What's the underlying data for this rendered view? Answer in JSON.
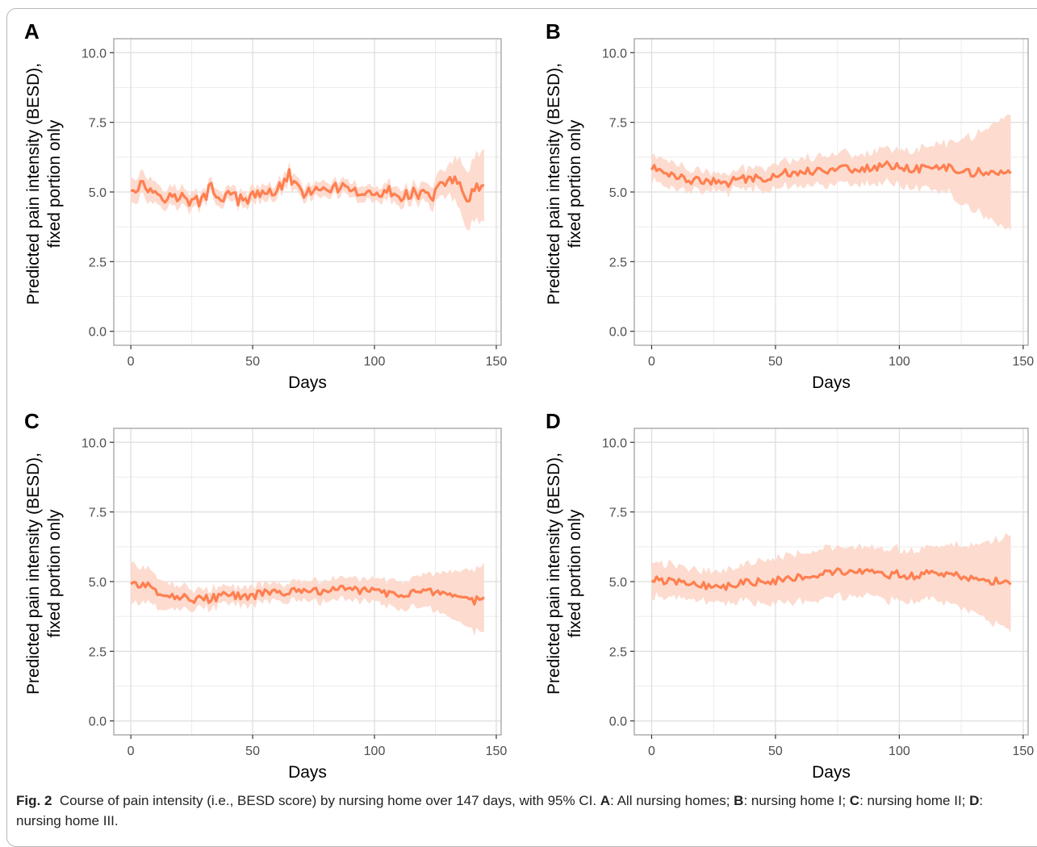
{
  "caption": {
    "label": "Fig. 2",
    "text_a": "Course of pain intensity (i.e., BESD score) by nursing home over 147 days, with 95% CI. ",
    "k1": "A",
    "t1": ": All nursing homes; ",
    "k2": "B",
    "t2": ": nursing home I; ",
    "k3": "C",
    "t3": ": nursing home II; ",
    "k4": "D",
    "t4": ": nursing home III."
  },
  "colors": {
    "line": "#FF7F50",
    "ribbon": "#FDD9CC",
    "grid": "#dedede",
    "panel_border": "#9a9a9a"
  },
  "chart_data": [
    {
      "panel": "A",
      "type": "line",
      "xlabel": "Days",
      "ylabel": "Predicted pain intensity (BESD),",
      "ylabel2": "fixed portion only",
      "xlim": [
        -7,
        152
      ],
      "ylim": [
        -0.5,
        10.5
      ],
      "xticks": [
        0,
        50,
        100,
        150
      ],
      "yticks": [
        0.0,
        2.5,
        5.0,
        7.5,
        10.0
      ],
      "ytick_labels": [
        "0.0",
        "2.5",
        "5.0",
        "7.5",
        "10.0"
      ],
      "x_start": 0,
      "x_end": 145,
      "mean": {
        "anchors": [
          [
            0,
            5.15
          ],
          [
            5,
            5.25
          ],
          [
            10,
            5.0
          ],
          [
            15,
            4.8
          ],
          [
            20,
            4.85
          ],
          [
            25,
            4.6
          ],
          [
            30,
            4.75
          ],
          [
            33,
            5.2
          ],
          [
            36,
            4.8
          ],
          [
            40,
            4.9
          ],
          [
            45,
            4.7
          ],
          [
            50,
            4.8
          ],
          [
            55,
            5.0
          ],
          [
            60,
            5.05
          ],
          [
            65,
            5.6
          ],
          [
            70,
            4.9
          ],
          [
            75,
            5.15
          ],
          [
            80,
            4.9
          ],
          [
            85,
            5.2
          ],
          [
            90,
            4.95
          ],
          [
            95,
            5.0
          ],
          [
            100,
            4.8
          ],
          [
            105,
            5.05
          ],
          [
            110,
            4.85
          ],
          [
            115,
            5.0
          ],
          [
            120,
            4.9
          ],
          [
            125,
            4.9
          ],
          [
            130,
            5.5
          ],
          [
            134,
            5.4
          ],
          [
            138,
            4.7
          ],
          [
            142,
            5.1
          ],
          [
            145,
            5.1
          ]
        ],
        "amp": 0.22
      },
      "ribbon_half": {
        "anchors": [
          [
            0,
            0.45
          ],
          [
            30,
            0.25
          ],
          [
            60,
            0.25
          ],
          [
            100,
            0.25
          ],
          [
            120,
            0.3
          ],
          [
            130,
            0.5
          ],
          [
            135,
            0.9
          ],
          [
            140,
            1.1
          ],
          [
            145,
            1.3
          ]
        ],
        "amp": 0.08
      }
    },
    {
      "panel": "B",
      "type": "line",
      "xlabel": "Days",
      "ylabel": "Predicted pain intensity (BESD),",
      "ylabel2": "fixed portion only",
      "xlim": [
        -7,
        152
      ],
      "ylim": [
        -0.5,
        10.5
      ],
      "xticks": [
        0,
        50,
        100,
        150
      ],
      "yticks": [
        0.0,
        2.5,
        5.0,
        7.5,
        10.0
      ],
      "ytick_labels": [
        "0.0",
        "2.5",
        "5.0",
        "7.5",
        "10.0"
      ],
      "x_start": 0,
      "x_end": 145,
      "mean": {
        "anchors": [
          [
            0,
            5.85
          ],
          [
            5,
            5.75
          ],
          [
            10,
            5.6
          ],
          [
            15,
            5.45
          ],
          [
            20,
            5.4
          ],
          [
            25,
            5.35
          ],
          [
            30,
            5.3
          ],
          [
            35,
            5.45
          ],
          [
            40,
            5.5
          ],
          [
            45,
            5.5
          ],
          [
            50,
            5.6
          ],
          [
            55,
            5.7
          ],
          [
            60,
            5.75
          ],
          [
            65,
            5.75
          ],
          [
            70,
            5.8
          ],
          [
            75,
            5.85
          ],
          [
            80,
            5.85
          ],
          [
            85,
            5.8
          ],
          [
            90,
            5.9
          ],
          [
            95,
            5.95
          ],
          [
            100,
            5.95
          ],
          [
            105,
            5.8
          ],
          [
            110,
            5.85
          ],
          [
            115,
            5.85
          ],
          [
            120,
            5.9
          ],
          [
            125,
            5.75
          ],
          [
            130,
            5.7
          ],
          [
            135,
            5.75
          ],
          [
            140,
            5.65
          ],
          [
            145,
            5.75
          ]
        ],
        "amp": 0.15
      },
      "ribbon_half": {
        "anchors": [
          [
            0,
            0.45
          ],
          [
            20,
            0.3
          ],
          [
            35,
            0.3
          ],
          [
            50,
            0.4
          ],
          [
            70,
            0.5
          ],
          [
            90,
            0.55
          ],
          [
            110,
            0.7
          ],
          [
            120,
            0.9
          ],
          [
            130,
            1.3
          ],
          [
            140,
            1.8
          ],
          [
            145,
            2.1
          ]
        ],
        "amp": 0.15
      }
    },
    {
      "panel": "C",
      "type": "line",
      "xlabel": "Days",
      "ylabel": "Predicted pain intensity (BESD),",
      "ylabel2": "fixed portion only",
      "xlim": [
        -7,
        152
      ],
      "ylim": [
        -0.5,
        10.5
      ],
      "xticks": [
        0,
        50,
        100,
        150
      ],
      "yticks": [
        0.0,
        2.5,
        5.0,
        7.5,
        10.0
      ],
      "ytick_labels": [
        "0.0",
        "2.5",
        "5.0",
        "7.5",
        "10.0"
      ],
      "x_start": 0,
      "x_end": 145,
      "mean": {
        "anchors": [
          [
            0,
            4.95
          ],
          [
            5,
            4.9
          ],
          [
            10,
            4.7
          ],
          [
            15,
            4.55
          ],
          [
            20,
            4.45
          ],
          [
            25,
            4.4
          ],
          [
            30,
            4.35
          ],
          [
            35,
            4.45
          ],
          [
            40,
            4.5
          ],
          [
            45,
            4.45
          ],
          [
            50,
            4.5
          ],
          [
            55,
            4.6
          ],
          [
            60,
            4.6
          ],
          [
            65,
            4.65
          ],
          [
            70,
            4.6
          ],
          [
            75,
            4.7
          ],
          [
            80,
            4.65
          ],
          [
            85,
            4.7
          ],
          [
            90,
            4.75
          ],
          [
            95,
            4.7
          ],
          [
            100,
            4.65
          ],
          [
            105,
            4.6
          ],
          [
            110,
            4.55
          ],
          [
            115,
            4.6
          ],
          [
            120,
            4.65
          ],
          [
            125,
            4.55
          ],
          [
            130,
            4.45
          ],
          [
            135,
            4.35
          ],
          [
            140,
            4.3
          ],
          [
            145,
            4.4
          ]
        ],
        "amp": 0.15
      },
      "ribbon_half": {
        "anchors": [
          [
            0,
            0.7
          ],
          [
            10,
            0.5
          ],
          [
            25,
            0.35
          ],
          [
            40,
            0.3
          ],
          [
            60,
            0.3
          ],
          [
            80,
            0.35
          ],
          [
            100,
            0.4
          ],
          [
            115,
            0.5
          ],
          [
            125,
            0.65
          ],
          [
            135,
            0.9
          ],
          [
            145,
            1.2
          ]
        ],
        "amp": 0.1
      }
    },
    {
      "panel": "D",
      "type": "line",
      "xlabel": "Days",
      "ylabel": "Predicted pain intensity (BESD),",
      "ylabel2": "fixed portion only",
      "xlim": [
        -7,
        152
      ],
      "ylim": [
        -0.5,
        10.5
      ],
      "xticks": [
        0,
        50,
        100,
        150
      ],
      "yticks": [
        0.0,
        2.5,
        5.0,
        7.5,
        10.0
      ],
      "ytick_labels": [
        "0.0",
        "2.5",
        "5.0",
        "7.5",
        "10.0"
      ],
      "x_start": 0,
      "x_end": 145,
      "mean": {
        "anchors": [
          [
            0,
            5.05
          ],
          [
            10,
            5.0
          ],
          [
            20,
            4.9
          ],
          [
            30,
            4.8
          ],
          [
            40,
            5.0
          ],
          [
            50,
            5.05
          ],
          [
            55,
            5.15
          ],
          [
            60,
            5.2
          ],
          [
            65,
            5.25
          ],
          [
            70,
            5.3
          ],
          [
            75,
            5.35
          ],
          [
            80,
            5.3
          ],
          [
            85,
            5.35
          ],
          [
            90,
            5.3
          ],
          [
            95,
            5.25
          ],
          [
            100,
            5.25
          ],
          [
            105,
            5.2
          ],
          [
            110,
            5.25
          ],
          [
            115,
            5.3
          ],
          [
            120,
            5.25
          ],
          [
            125,
            5.2
          ],
          [
            130,
            5.1
          ],
          [
            135,
            5.05
          ],
          [
            140,
            5.0
          ],
          [
            145,
            5.05
          ]
        ],
        "amp": 0.15
      },
      "ribbon_half": {
        "anchors": [
          [
            0,
            0.6
          ],
          [
            20,
            0.5
          ],
          [
            35,
            0.6
          ],
          [
            50,
            0.8
          ],
          [
            70,
            0.85
          ],
          [
            90,
            0.85
          ],
          [
            110,
            0.9
          ],
          [
            120,
            1.0
          ],
          [
            130,
            1.2
          ],
          [
            140,
            1.5
          ],
          [
            145,
            1.7
          ]
        ],
        "amp": 0.15
      }
    }
  ]
}
